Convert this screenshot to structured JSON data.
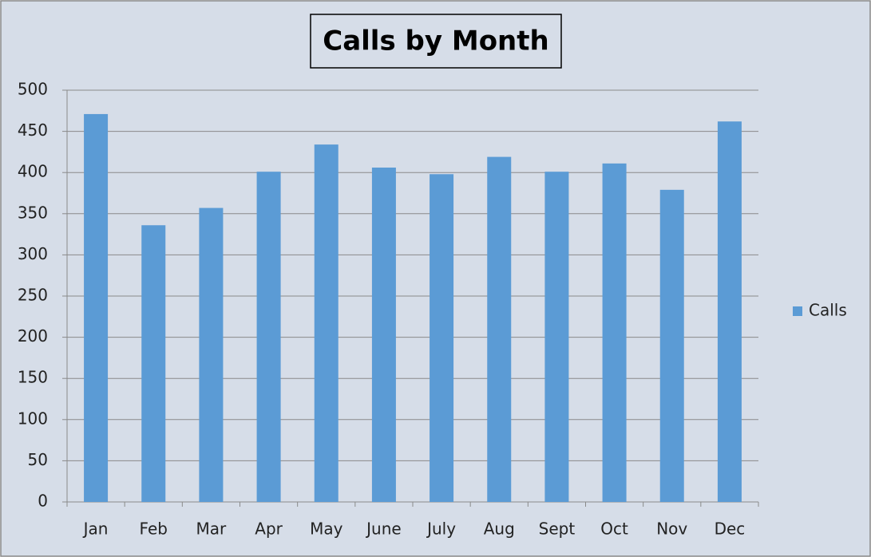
{
  "chart_data": {
    "type": "bar",
    "title": "Calls by Month",
    "categories": [
      "Jan",
      "Feb",
      "Mar",
      "Apr",
      "May",
      "June",
      "July",
      "Aug",
      "Sept",
      "Oct",
      "Nov",
      "Dec"
    ],
    "series": [
      {
        "name": "Calls",
        "color": "#5b9bd5",
        "values": [
          471,
          336,
          357,
          401,
          434,
          406,
          398,
          419,
          401,
          411,
          379,
          462
        ]
      }
    ],
    "ylim": [
      0,
      500
    ],
    "yticks": [
      0,
      50,
      100,
      150,
      200,
      250,
      300,
      350,
      400,
      450,
      500
    ],
    "grid": true,
    "legend": "right"
  }
}
